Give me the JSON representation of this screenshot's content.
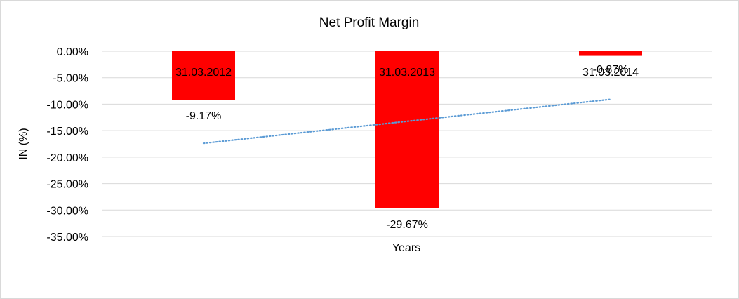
{
  "chart_data": {
    "type": "bar",
    "title": "Net Profit Margin",
    "xlabel": "Years",
    "ylabel": "IN (%)",
    "categories": [
      "31.03.2012",
      "31.03.2013",
      "31.03.2014"
    ],
    "series": [
      {
        "values": [
          -9.17,
          -29.67,
          -0.87
        ],
        "data_labels": [
          "-9.17%",
          "-29.67%",
          "-0.87%"
        ]
      }
    ],
    "ylim": [
      -35,
      0
    ],
    "yticks": [
      0,
      -5,
      -10,
      -15,
      -20,
      -25,
      -30,
      -35
    ],
    "ytick_labels": [
      "0.00%",
      "-5.00%",
      "-10.00%",
      "-15.00%",
      "-20.00%",
      "-25.00%",
      "-30.00%",
      "-35.00%"
    ],
    "trendline": {
      "type": "linear",
      "style": "dotted"
    },
    "grid": true,
    "legend": "none",
    "colors": {
      "bar": "#ff0000",
      "trendline": "#5b9bd5",
      "grid": "#d9d9d9"
    }
  }
}
